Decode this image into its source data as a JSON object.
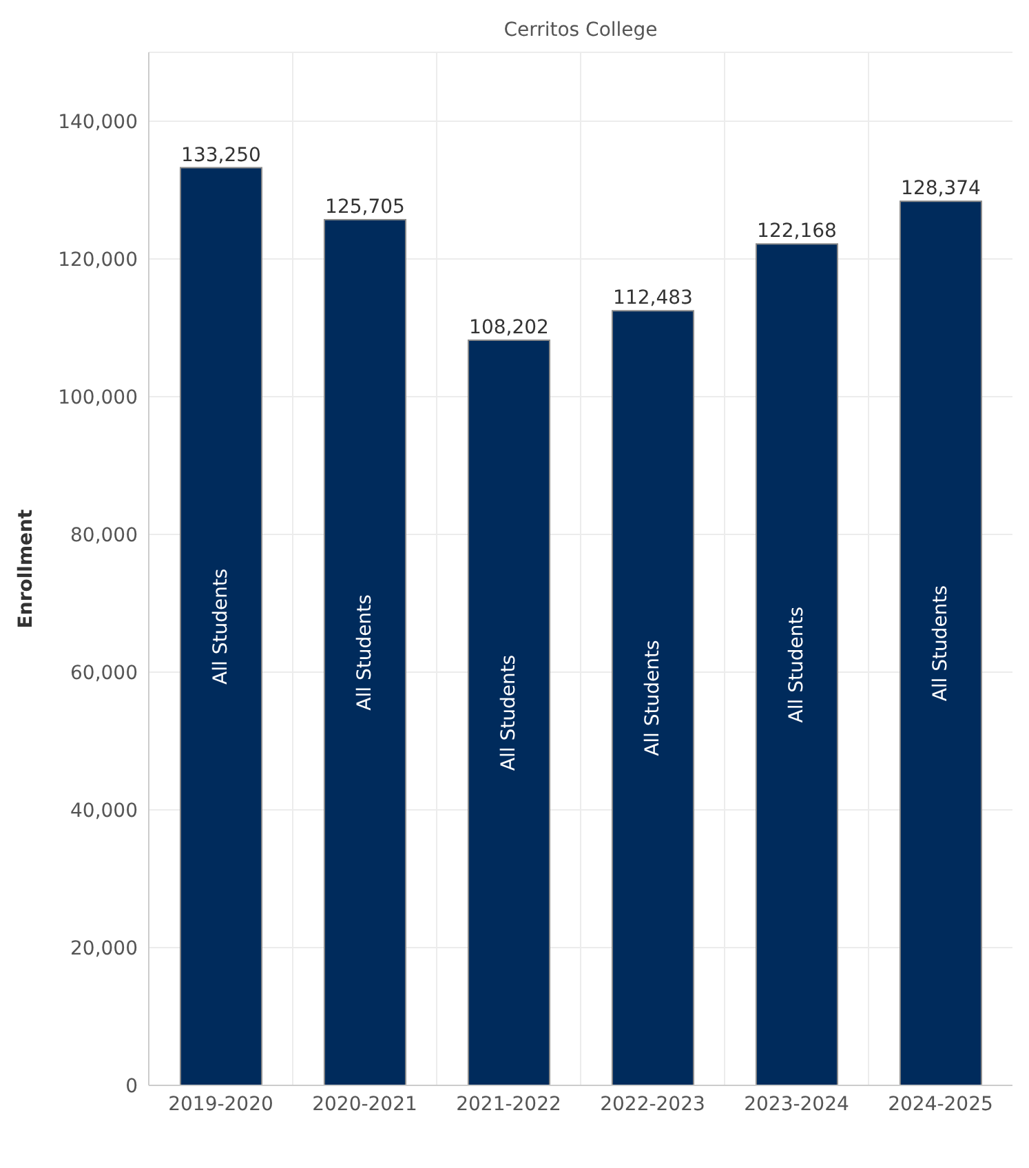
{
  "chart_data": {
    "type": "bar",
    "title": "Cerritos College",
    "ylabel": "Enrollment",
    "categories": [
      "2019-2020",
      "2020-2021",
      "2021-2022",
      "2022-2023",
      "2023-2024",
      "2024-2025"
    ],
    "series": [
      {
        "name": "All Students",
        "color": "#002b5c",
        "values": [
          133250,
          125705,
          108202,
          112483,
          122168,
          128374
        ],
        "value_labels": [
          "133,250",
          "125,705",
          "108,202",
          "112,483",
          "122,168",
          "128,374"
        ]
      }
    ],
    "ylim": [
      0,
      150000
    ],
    "yticks": [
      0,
      {
        "value": 20000,
        "label": "20,000"
      },
      {
        "value": 40000,
        "label": "40,000"
      },
      {
        "value": 60000,
        "label": "60,000"
      },
      {
        "value": 80000,
        "label": "80,000"
      },
      {
        "value": 100000,
        "label": "100,000"
      },
      {
        "value": 120000,
        "label": "120,000"
      },
      {
        "value": 140000,
        "label": "140,000"
      }
    ],
    "grid": true
  }
}
